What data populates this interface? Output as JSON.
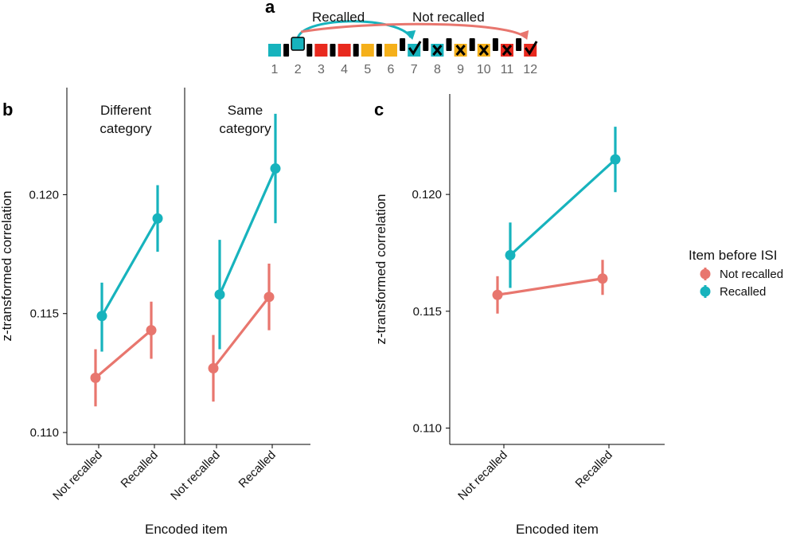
{
  "colors": {
    "not_recalled": "#e8766e",
    "recalled": "#17b3bd",
    "seq_red": "#e8291e",
    "seq_yellow": "#f5b01a",
    "seq_teal": "#17b3bd",
    "seq_black": "#000000",
    "axis": "#000000"
  },
  "panel_a": {
    "letter": "a",
    "arrow_recalled_label": "Recalled",
    "arrow_not_recalled_label": "Not recalled",
    "sequence": [
      {
        "num": "1",
        "color": "teal",
        "mark": ""
      },
      {
        "num": "2",
        "color": "teal",
        "mark": ""
      },
      {
        "num": "3",
        "color": "red",
        "mark": ""
      },
      {
        "num": "4",
        "color": "red",
        "mark": ""
      },
      {
        "num": "5",
        "color": "yellow",
        "mark": ""
      },
      {
        "num": "6",
        "color": "yellow",
        "mark": ""
      },
      {
        "num": "7",
        "color": "teal",
        "mark": "check"
      },
      {
        "num": "8",
        "color": "teal",
        "mark": "cross"
      },
      {
        "num": "9",
        "color": "yellow",
        "mark": "cross"
      },
      {
        "num": "10",
        "color": "yellow",
        "mark": "cross"
      },
      {
        "num": "11",
        "color": "red",
        "mark": "cross"
      },
      {
        "num": "12",
        "color": "red",
        "mark": "check"
      }
    ]
  },
  "panel_b": {
    "letter": "b"
  },
  "panel_c": {
    "letter": "c"
  },
  "chart_data": [
    {
      "type": "line",
      "panel": "b",
      "facet_titles": [
        [
          "Different",
          "category"
        ],
        [
          "Same",
          "category"
        ]
      ],
      "categories": [
        "Not recalled",
        "Recalled"
      ],
      "ylabel": "z-transformed correlation",
      "xlabel": "Encoded item",
      "ylim": [
        0.1095,
        0.1245
      ],
      "yticks": [
        0.11,
        0.115,
        0.12
      ],
      "ytick_labels": [
        "0.110",
        "0.115",
        "0.120"
      ],
      "series": [
        {
          "name": "Not recalled",
          "facets": [
            {
              "values": [
                0.1123,
                0.1143
              ],
              "lower": [
                0.1111,
                0.1131
              ],
              "upper": [
                0.1135,
                0.1155
              ]
            },
            {
              "values": [
                0.1127,
                0.1157
              ],
              "lower": [
                0.1113,
                0.1143
              ],
              "upper": [
                0.1141,
                0.1171
              ]
            }
          ]
        },
        {
          "name": "Recalled",
          "facets": [
            {
              "values": [
                0.1149,
                0.119
              ],
              "lower": [
                0.1134,
                0.1176
              ],
              "upper": [
                0.1163,
                0.1204
              ]
            },
            {
              "values": [
                0.1158,
                0.1211
              ],
              "lower": [
                0.1135,
                0.1188
              ],
              "upper": [
                0.1181,
                0.1234
              ]
            }
          ]
        }
      ]
    },
    {
      "type": "line",
      "panel": "c",
      "categories": [
        "Not recalled",
        "Recalled"
      ],
      "ylabel": "z-transformed correlation",
      "xlabel": "Encoded item",
      "ylim": [
        0.1093,
        0.1243
      ],
      "yticks": [
        0.11,
        0.115,
        0.12
      ],
      "ytick_labels": [
        "0.110",
        "0.115",
        "0.120"
      ],
      "legend_title": "Item before ISI",
      "legend_position": "right",
      "series": [
        {
          "name": "Not recalled",
          "values": [
            0.1157,
            0.1164
          ],
          "lower": [
            0.1149,
            0.1157
          ],
          "upper": [
            0.1165,
            0.1172
          ]
        },
        {
          "name": "Recalled",
          "values": [
            0.1174,
            0.1215
          ],
          "lower": [
            0.116,
            0.1201
          ],
          "upper": [
            0.1188,
            0.1229
          ]
        }
      ]
    }
  ]
}
